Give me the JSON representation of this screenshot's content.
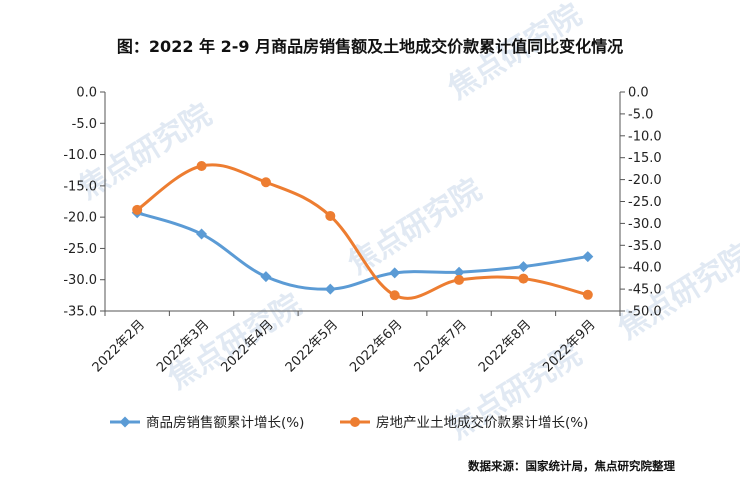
{
  "title": "图：2022 年 2-9 月商品房销售额及土地成交价款累计值同比变化情况",
  "source": "数据来源：国家统计局，焦点研究院整理",
  "watermark": "焦点研究院",
  "colors": {
    "series1": "#5b9bd5",
    "series2": "#ed7d31",
    "watermark": "#c9d8ea"
  },
  "chart_data": {
    "type": "line",
    "categories": [
      "2022年2月",
      "2022年3月",
      "2022年4月",
      "2022年5月",
      "2022年6月",
      "2022年7月",
      "2022年8月",
      "2022年9月"
    ],
    "series": [
      {
        "name": "商品房销售额累计增长(%)",
        "axis": "left",
        "marker": "diamond",
        "values": [
          -19.3,
          -22.7,
          -29.5,
          -31.5,
          -28.9,
          -28.8,
          -27.9,
          -26.3
        ]
      },
      {
        "name": "房地产业土地成交价款累计增长(%)",
        "axis": "right",
        "marker": "circle",
        "values": [
          -26.9,
          -16.9,
          -20.6,
          -28.3,
          -46.4,
          -42.9,
          -42.6,
          -46.3
        ]
      }
    ],
    "y_left": {
      "lim": [
        -35,
        0
      ],
      "ticks": [
        "0.0",
        "-5.0",
        "-10.0",
        "-15.0",
        "-20.0",
        "-25.0",
        "-30.0",
        "-35.0"
      ],
      "tick_values": [
        0,
        -5,
        -10,
        -15,
        -20,
        -25,
        -30,
        -35
      ]
    },
    "y_right": {
      "lim": [
        -50,
        0
      ],
      "ticks": [
        "0.0",
        "-5.0",
        "-10.0",
        "-15.0",
        "-20.0",
        "-25.0",
        "-30.0",
        "-35.0",
        "-40.0",
        "-45.0",
        "-50.0"
      ],
      "tick_values": [
        0,
        -5,
        -10,
        -15,
        -20,
        -25,
        -30,
        -35,
        -40,
        -45,
        -50
      ]
    },
    "grid": false,
    "legend_position": "bottom"
  }
}
